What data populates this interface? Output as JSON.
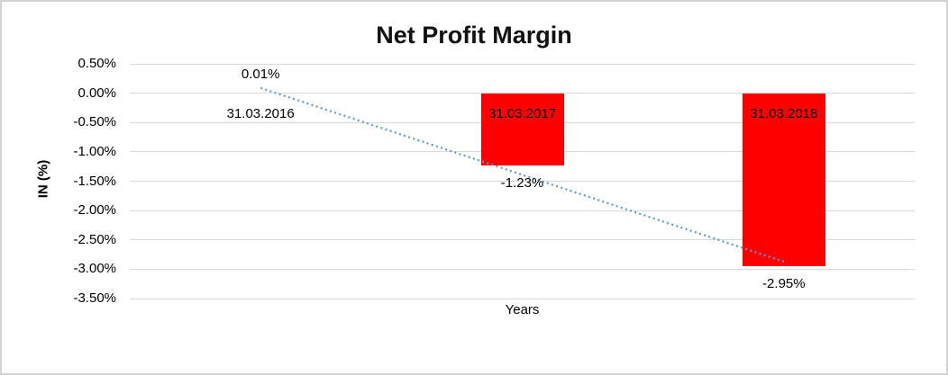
{
  "chart_data": {
    "type": "bar",
    "title": "Net Profit Margin",
    "xlabel": "Years",
    "ylabel": "IN (%)",
    "categories": [
      "31.03.2016",
      "31.03.2017",
      "31.03.2018"
    ],
    "series": [
      {
        "name": "Net Profit Margin",
        "values": [
          0.01,
          -1.23,
          -2.95
        ]
      }
    ],
    "data_labels": [
      "0.01%",
      "-1.23%",
      "-2.95%"
    ],
    "y_ticks": [
      "0.50%",
      "0.00%",
      "-0.50%",
      "-1.00%",
      "-1.50%",
      "-2.00%",
      "-2.50%",
      "-3.00%",
      "-3.50%"
    ],
    "y_tick_values": [
      0.5,
      0.0,
      -0.5,
      -1.0,
      -1.5,
      -2.0,
      -2.5,
      -3.0,
      -3.5
    ],
    "ylim": [
      -3.5,
      0.5
    ],
    "grid": true,
    "legend": "none",
    "bar_color": "#FF0000",
    "gridline_color": "#d9d9d9",
    "trendline": {
      "type": "linear",
      "style": "dotted",
      "color": "#5B9BD5",
      "start_value": 0.09,
      "end_value": -2.87
    }
  }
}
